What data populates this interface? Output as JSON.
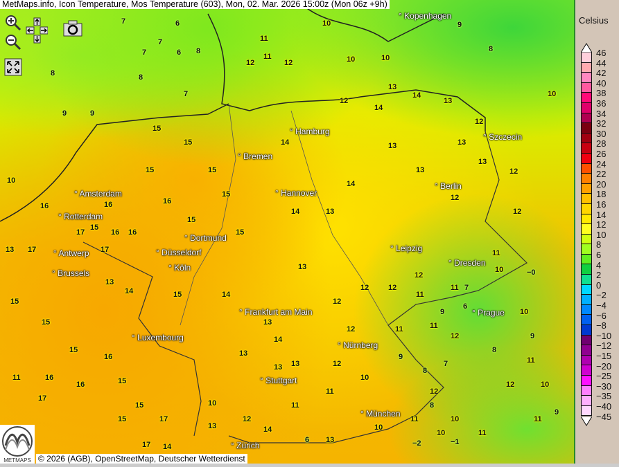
{
  "title": "MetMaps.info, Icon Temperature, Mos Temperature (603), Mon, 02. Mar. 2026 15:00z (Mon 06z +9h)",
  "controls": {
    "zoom_in": "zoom-in",
    "zoom_out": "zoom-out",
    "pan": "pan-arrows",
    "screenshot": "camera",
    "fullscreen": "fullscreen"
  },
  "legend": {
    "unit": "Celsius",
    "levels": [
      "46",
      "44",
      "42",
      "40",
      "38",
      "36",
      "34",
      "32",
      "30",
      "28",
      "26",
      "24",
      "22",
      "20",
      "18",
      "16",
      "14",
      "12",
      "10",
      "8",
      "6",
      "4",
      "2",
      "0",
      "−2",
      "−4",
      "−6",
      "−8",
      "−10",
      "−12",
      "−15",
      "−20",
      "−25",
      "−30",
      "−35",
      "−40",
      "−45"
    ],
    "colors": [
      "#ffd0dc",
      "#ffaab0",
      "#ff88c0",
      "#ff5aa0",
      "#ff0a78",
      "#e0006a",
      "#b00050",
      "#7a0010",
      "#a00010",
      "#c80010",
      "#f00010",
      "#ff5000",
      "#ff8000",
      "#ffa000",
      "#ffc000",
      "#ffd600",
      "#ffea00",
      "#ffff20",
      "#d0ff10",
      "#a0ff20",
      "#60f020",
      "#10d040",
      "#10e090",
      "#00d8ff",
      "#00b0ff",
      "#0088ff",
      "#0060f0",
      "#0038d0",
      "#700070",
      "#900090",
      "#b000b0",
      "#d000d0",
      "#ff10ff",
      "#ff80ff",
      "#ffb0ff",
      "#ffd8ff"
    ]
  },
  "cities": [
    "Kopenhagen",
    "Hamburg",
    "Szczecin",
    "Bremen",
    "Amsterdam",
    "Rotterdam",
    "Hannover",
    "Berlin",
    "Dortmund",
    "Düsseldorf",
    "Antwerp",
    "Köln",
    "Brussels",
    "Leipzig",
    "Dresden",
    "Frankfurt am Main",
    "Prague",
    "Luxembourg",
    "Nürnberg",
    "Stuttgart",
    "München",
    "Zürich"
  ],
  "temperatures": [
    "7",
    "6",
    "7",
    "7",
    "6",
    "8",
    "8",
    "8",
    "7",
    "9",
    "9",
    "11",
    "11",
    "12",
    "12",
    "12",
    "10",
    "10",
    "10",
    "9",
    "8",
    "10",
    "13",
    "14",
    "13",
    "12",
    "13",
    "12",
    "13",
    "14",
    "15",
    "15",
    "15",
    "14",
    "15",
    "16",
    "15",
    "15",
    "14",
    "13",
    "14",
    "13",
    "12",
    "13",
    "12",
    "10",
    "16",
    "16",
    "16",
    "15",
    "16",
    "17",
    "17",
    "17",
    "13",
    "15",
    "15",
    "13",
    "14",
    "15",
    "14",
    "13",
    "13",
    "12",
    "12",
    "12",
    "11",
    "11",
    "10",
    "11",
    "10",
    "11",
    "12",
    "13",
    "15",
    "16",
    "16",
    "17",
    "15",
    "15",
    "14",
    "13",
    "12",
    "11",
    "11",
    "10",
    "9",
    "8",
    "7",
    "7",
    "8",
    "9",
    "10",
    "9",
    "11",
    "11",
    "12",
    "11",
    "10",
    "12",
    "11",
    "10",
    "−0",
    "−2",
    "−1",
    "6",
    "8",
    "10",
    "12",
    "13",
    "13",
    "14",
    "15",
    "11",
    "17",
    "16",
    "15",
    "17",
    "14",
    "10",
    "6",
    "11",
    "12",
    "13",
    "12",
    "9"
  ],
  "credit": "© 2026 (AGB), OpenStreetMap, Deutscher Wetterdienst",
  "logo_text": "METMAPS"
}
